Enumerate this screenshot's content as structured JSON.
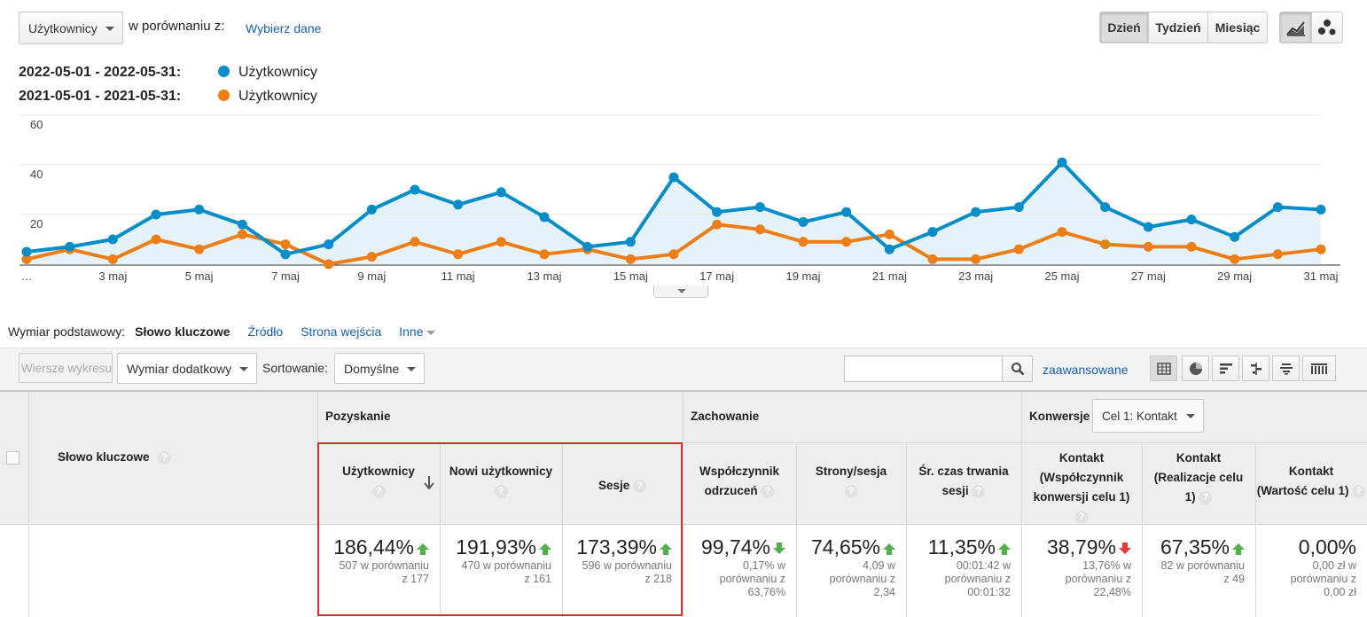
{
  "top": {
    "metric_select": "Użytkownicy",
    "compare_label": "w porównaniu z:",
    "select_data_link": "Wybierz dane",
    "period_buttons": [
      "Dzień",
      "Tydzień",
      "Miesiąc"
    ],
    "active_period": "Dzień",
    "chart_type_icons": [
      "line-chart-icon",
      "motion-chart-icon"
    ]
  },
  "legend": [
    {
      "date": "2022-05-01 - 2022-05-31:",
      "label": "Użytkownicy",
      "color": "#058dc7"
    },
    {
      "date": "2021-05-01 - 2021-05-31:",
      "label": "Użytkownicy",
      "color": "#ed7e17"
    }
  ],
  "chart_data": {
    "type": "line",
    "x": [
      "…",
      "2",
      "3 maj",
      "4",
      "5 maj",
      "6",
      "7 maj",
      "8",
      "9 maj",
      "10",
      "11 maj",
      "12",
      "13 maj",
      "14",
      "15 maj",
      "16",
      "17 maj",
      "18",
      "19 maj",
      "20",
      "21 maj",
      "22",
      "23 maj",
      "24",
      "25 maj",
      "26",
      "27 maj",
      "28",
      "29 maj",
      "30",
      "31 maj"
    ],
    "x_tick_labels": [
      "…",
      "3 maj",
      "5 maj",
      "7 maj",
      "9 maj",
      "11 maj",
      "13 maj",
      "15 maj",
      "17 maj",
      "19 maj",
      "21 maj",
      "23 maj",
      "25 maj",
      "27 maj",
      "29 maj",
      "31 maj"
    ],
    "y_ticks": [
      "20",
      "40",
      "60"
    ],
    "ylim": [
      0,
      60
    ],
    "series": [
      {
        "name": "Użytkownicy",
        "color": "#058dc7",
        "values": [
          5,
          7,
          10,
          20,
          22,
          16,
          4,
          8,
          22,
          30,
          24,
          29,
          19,
          7,
          9,
          35,
          21,
          23,
          17,
          21,
          6,
          13,
          21,
          23,
          41,
          23,
          15,
          18,
          11,
          23,
          22
        ]
      },
      {
        "name": "Użytkownicy",
        "color": "#ed7e17",
        "values": [
          2,
          6,
          2,
          10,
          6,
          12,
          8,
          0,
          3,
          9,
          4,
          9,
          4,
          6,
          2,
          4,
          16,
          14,
          9,
          9,
          12,
          2,
          2,
          6,
          13,
          8,
          7,
          7,
          2,
          4,
          6
        ]
      }
    ]
  },
  "dimension": {
    "label": "Wymiar podstawowy:",
    "active": "Słowo kluczowe",
    "links": [
      "Źródło",
      "Strona wejścia",
      "Inne"
    ]
  },
  "toolbar": {
    "plot_rows": "Wiersze wykresu",
    "secondary_dim": "Wymiar dodatkowy",
    "sort_label": "Sortowanie:",
    "sort_value": "Domyślne",
    "search_placeholder": "",
    "advanced": "zaawansowane",
    "view_icons": [
      "table-view-icon",
      "pie-view-icon",
      "performance-view-icon",
      "comparison-view-icon",
      "term-cloud-icon",
      "pivot-view-icon"
    ]
  },
  "table": {
    "keyword_header": "Słowo kluczowe",
    "groups": {
      "acq": "Pozyskanie",
      "beh": "Zachowanie",
      "conv": "Konwersje",
      "goal_select": "Cel 1: Kontakt"
    },
    "columns": [
      {
        "h1": "Użytkownicy",
        "h2": "",
        "value": "186,44%",
        "trend": "up",
        "sub1": "507 w porównaniu",
        "sub2": "z 177",
        "sub3": ""
      },
      {
        "h1": "Nowi użytkownicy",
        "h2": "",
        "value": "191,93%",
        "trend": "up",
        "sub1": "470 w porównaniu",
        "sub2": "z 161",
        "sub3": ""
      },
      {
        "h1": "Sesje",
        "h2": "",
        "value": "173,39%",
        "trend": "up",
        "sub1": "596 w porównaniu",
        "sub2": "z 218",
        "sub3": ""
      },
      {
        "h1": "Współczynnik",
        "h2": "odrzuceń",
        "value": "99,74%",
        "trend": "down-good",
        "sub1": "0,17% w",
        "sub2": "porównaniu z",
        "sub3": "63,76%"
      },
      {
        "h1": "Strony/sesja",
        "h2": "",
        "value": "74,65%",
        "trend": "up",
        "sub1": "4,09 w",
        "sub2": "porównaniu z",
        "sub3": "2,34"
      },
      {
        "h1": "Śr. czas trwania",
        "h2": "sesji",
        "value": "11,35%",
        "trend": "up",
        "sub1": "00:01:42 w",
        "sub2": "porównaniu z",
        "sub3": "00:01:32"
      },
      {
        "h1": "Kontakt",
        "h2": "(Współczynnik",
        "h3": "konwersji celu 1)",
        "value": "38,79%",
        "trend": "down-bad",
        "sub1": "13,76% w",
        "sub2": "porównaniu z",
        "sub3": "22,48%"
      },
      {
        "h1": "Kontakt",
        "h2": "(Realizacje celu",
        "h3": "1)",
        "value": "67,35%",
        "trend": "up",
        "sub1": "82 w porównaniu",
        "sub2": "z 49",
        "sub3": ""
      },
      {
        "h1": "Kontakt",
        "h2": "(Wartość celu 1)",
        "h3": "",
        "value": "0,00%",
        "trend": "",
        "sub1": "0,00 zł w",
        "sub2": "porównaniu z",
        "sub3": "0,00 zł"
      }
    ]
  }
}
